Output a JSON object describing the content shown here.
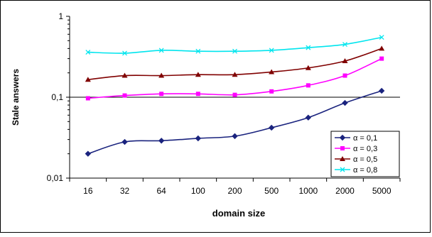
{
  "chart_data": {
    "type": "line",
    "title": "",
    "xlabel": "domain size",
    "ylabel": "Stale answers",
    "categories": [
      "16",
      "32",
      "64",
      "100",
      "200",
      "500",
      "1000",
      "2000",
      "5000"
    ],
    "y_scale": "log",
    "ylim": [
      0.01,
      1
    ],
    "y_ticks": [
      {
        "value": 1,
        "label": "1"
      },
      {
        "value": 0.1,
        "label": "0,1"
      },
      {
        "value": 0.01,
        "label": "0,01"
      }
    ],
    "grid": "horizontal major gridline at 0,1",
    "legend_position": "bottom-right",
    "series": [
      {
        "name": "α = 0,1",
        "color": "#1a237e",
        "marker": "diamond",
        "values": [
          0.02,
          0.028,
          0.029,
          0.031,
          0.033,
          0.042,
          0.056,
          0.085,
          0.12
        ]
      },
      {
        "name": "α = 0,3",
        "color": "#ff00ff",
        "marker": "square",
        "values": [
          0.097,
          0.105,
          0.11,
          0.11,
          0.107,
          0.118,
          0.14,
          0.185,
          0.3
        ]
      },
      {
        "name": "α = 0,5",
        "color": "#800000",
        "marker": "triangle",
        "values": [
          0.165,
          0.185,
          0.185,
          0.19,
          0.19,
          0.205,
          0.23,
          0.28,
          0.4
        ]
      },
      {
        "name": "α = 0,8",
        "color": "#00e5ee",
        "marker": "x",
        "values": [
          0.36,
          0.35,
          0.38,
          0.37,
          0.37,
          0.38,
          0.41,
          0.45,
          0.55
        ]
      }
    ]
  }
}
